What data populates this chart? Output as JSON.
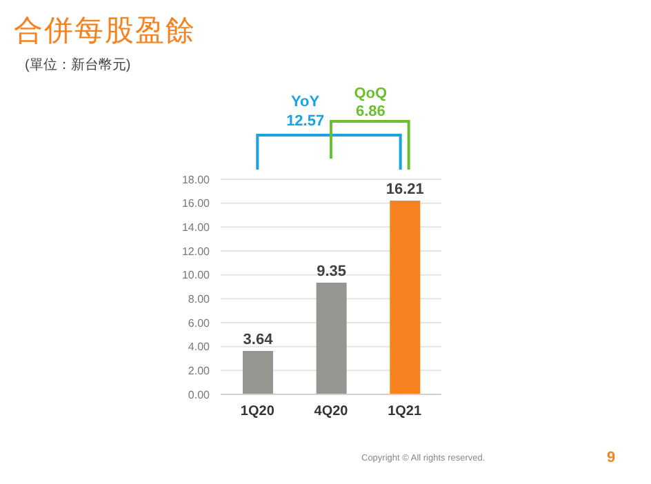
{
  "chart_data": {
    "type": "bar",
    "title": "合併每股盈餘",
    "subtitle": "(單位：新台幣元)",
    "categories": [
      "1Q20",
      "4Q20",
      "1Q21"
    ],
    "values": [
      3.64,
      9.35,
      16.21
    ],
    "colors": [
      "#969691",
      "#969691",
      "#f5821f"
    ],
    "ylim": [
      0,
      18
    ],
    "yticks": [
      {
        "value": 0,
        "label": "0.00"
      },
      {
        "value": 2,
        "label": "2.00"
      },
      {
        "value": 4,
        "label": "4.00"
      },
      {
        "value": 6,
        "label": "6.00"
      },
      {
        "value": 8,
        "label": "8.00"
      },
      {
        "value": 10,
        "label": "10.00"
      },
      {
        "value": 12,
        "label": "12.00"
      },
      {
        "value": 14,
        "label": "14.00"
      },
      {
        "value": 16,
        "label": "16.00"
      },
      {
        "value": 18,
        "label": "18.00"
      }
    ],
    "grid": "y",
    "data_labels": true,
    "annotations": [
      "YoY",
      "12.57",
      "QoQ",
      "6.86",
      "Copyright © All rights reserved.",
      "9"
    ]
  }
}
